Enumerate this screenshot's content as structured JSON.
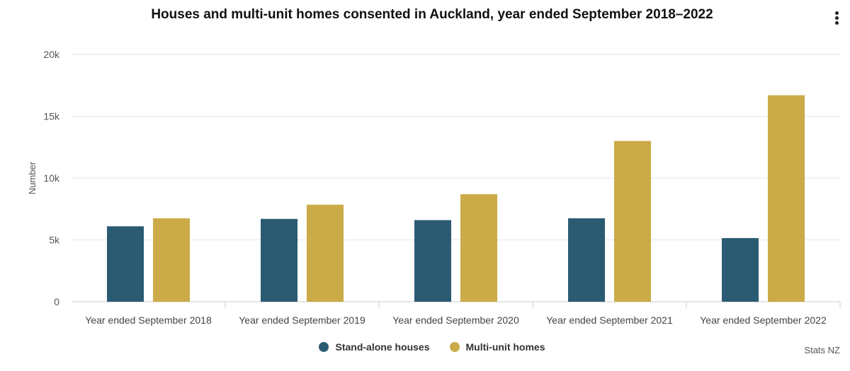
{
  "chart_data": {
    "type": "bar",
    "title": "Houses and multi-unit homes consented in Auckland, year ended September 2018–2022",
    "xlabel": "",
    "ylabel": "Number",
    "ylim": [
      0,
      20000
    ],
    "yticks": [
      0,
      5000,
      10000,
      15000,
      20000
    ],
    "ytick_labels": [
      "0",
      "5k",
      "10k",
      "15k",
      "20k"
    ],
    "grid": true,
    "legend_position": "bottom",
    "categories": [
      "Year ended September 2018",
      "Year ended September 2019",
      "Year ended September 2020",
      "Year ended September 2021",
      "Year ended September 2022"
    ],
    "series": [
      {
        "name": "Stand-alone houses",
        "color": "#2b5b73",
        "values": [
          6100,
          6700,
          6600,
          6750,
          5150
        ]
      },
      {
        "name": "Multi-unit homes",
        "color": "#cbab48",
        "values": [
          6750,
          7850,
          8700,
          13000,
          16700
        ]
      }
    ]
  },
  "credits": "Stats NZ",
  "menu_icon": "more-vertical-icon"
}
